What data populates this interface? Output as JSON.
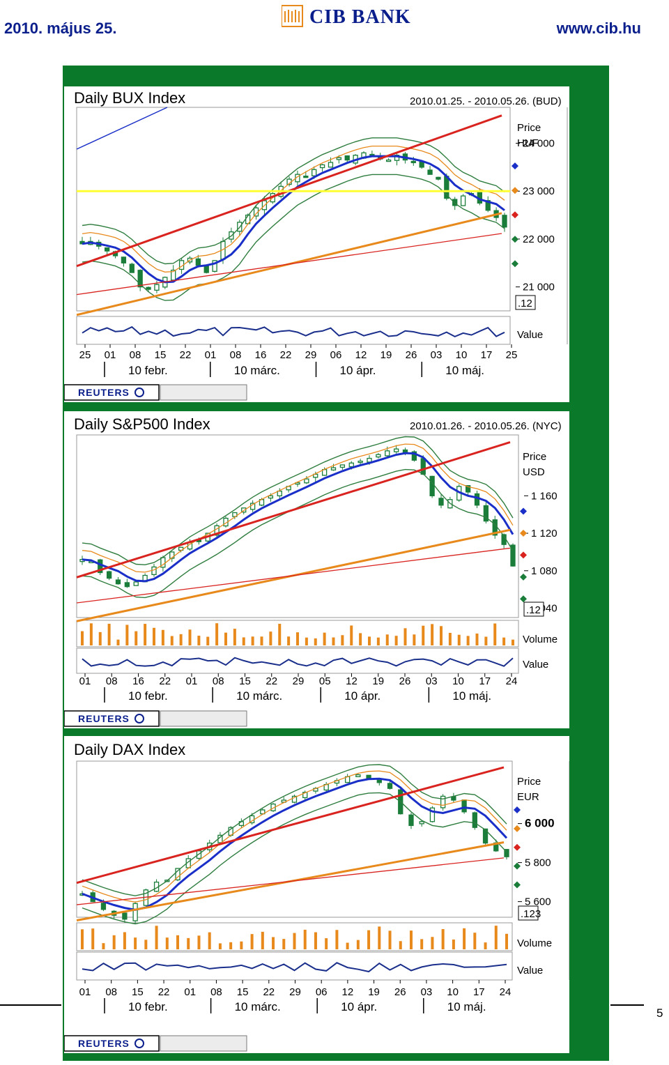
{
  "header": {
    "date": "2010. május 25.",
    "bank_name": "CIB BANK",
    "url": "www.cib.hu",
    "page_number": "5"
  },
  "colors": {
    "frame_green": "#0a7a2a",
    "header_blue": "#0b1f8c",
    "candle_green": "#1a7d3a",
    "trend_red": "#d9231f",
    "trend_orange": "#e8891c",
    "ma_blue": "#1a2fc8",
    "band_green": "#2e7d3e",
    "support_yellow": "#ffff33"
  },
  "reuters_label": "REUTERS",
  "chart_data": [
    {
      "type": "candlestick",
      "title": "Daily BUX Index",
      "date_range": "2010.01.25. - 2010.05.26. (BUD)",
      "price_label": "Price",
      "currency": "HUF",
      "yticks": [
        "24 000",
        "23 000",
        "22 000",
        "21 000"
      ],
      "ylim": [
        20500,
        24750
      ],
      "marker_label": ".12",
      "sub_labels": [
        "Value"
      ],
      "day_ticks": [
        "25",
        "01",
        "08",
        "15",
        "22",
        "01",
        "08",
        "16",
        "22",
        "29",
        "06",
        "12",
        "19",
        "26",
        "03",
        "10",
        "17",
        "25"
      ],
      "months": [
        "10 febr.",
        "10 márc.",
        "10 ápr.",
        "10 máj."
      ],
      "close": [
        21900,
        21950,
        21850,
        21750,
        21650,
        21500,
        21300,
        21000,
        20950,
        21050,
        21200,
        21350,
        21550,
        21600,
        21450,
        21300,
        21550,
        21950,
        22150,
        22350,
        22500,
        22650,
        22800,
        22950,
        23100,
        23250,
        23350,
        23300,
        23450,
        23550,
        23600,
        23700,
        23650,
        23750,
        23800,
        23750,
        23700,
        23650,
        23750,
        23650,
        23600,
        23500,
        23350,
        23250,
        22850,
        22700,
        22900,
        22950,
        22750,
        22600,
        22450,
        22250
      ]
    },
    {
      "type": "candlestick",
      "title": "Daily S&P500 Index",
      "date_range": "2010.01.26. - 2010.05.26. (NYC)",
      "price_label": "Price",
      "currency": "USD",
      "yticks": [
        "1 160",
        "1 120",
        "1 080",
        "1 040"
      ],
      "ylim": [
        1030,
        1225
      ],
      "marker_label": ".12",
      "sub_labels": [
        "Volume",
        "Value"
      ],
      "day_ticks": [
        "01",
        "08",
        "16",
        "22",
        "01",
        "08",
        "15",
        "22",
        "29",
        "05",
        "12",
        "19",
        "26",
        "03",
        "10",
        "17",
        "24"
      ],
      "months": [
        "10 febr.",
        "10 márc.",
        "10 ápr.",
        "10 máj."
      ],
      "close": [
        1092,
        1090,
        1078,
        1072,
        1066,
        1063,
        1068,
        1075,
        1084,
        1094,
        1100,
        1105,
        1110,
        1112,
        1120,
        1128,
        1136,
        1142,
        1147,
        1152,
        1156,
        1160,
        1165,
        1170,
        1174,
        1178,
        1183,
        1188,
        1190,
        1193,
        1195,
        1197,
        1200,
        1204,
        1208,
        1210,
        1206,
        1198,
        1183,
        1160,
        1150,
        1156,
        1170,
        1164,
        1150,
        1133,
        1118,
        1108,
        1085
      ]
    },
    {
      "type": "candlestick",
      "title": "Daily DAX Index",
      "date_range": "",
      "price_label": "Price",
      "currency": "EUR",
      "yticks": [
        "6 000",
        "5 800",
        "5 600"
      ],
      "ylim": [
        5520,
        6320
      ],
      "marker_label": ".123",
      "sub_labels": [
        "Volume",
        "Value"
      ],
      "day_ticks": [
        "01",
        "08",
        "15",
        "22",
        "01",
        "08",
        "15",
        "22",
        "29",
        "06",
        "12",
        "19",
        "26",
        "03",
        "10",
        "17",
        "24"
      ],
      "months": [
        "10 febr.",
        "10 márc.",
        "10 ápr.",
        "10 máj."
      ],
      "close": [
        5640,
        5600,
        5560,
        5530,
        5510,
        5590,
        5660,
        5700,
        5710,
        5770,
        5820,
        5860,
        5900,
        5940,
        5980,
        6010,
        6040,
        6070,
        6100,
        6120,
        6140,
        6160,
        6180,
        6200,
        6220,
        6240,
        6250,
        6230,
        6210,
        6180,
        6050,
        5990,
        6010,
        6080,
        6140,
        6120,
        6060,
        5980,
        5900,
        5860,
        5830
      ]
    }
  ]
}
